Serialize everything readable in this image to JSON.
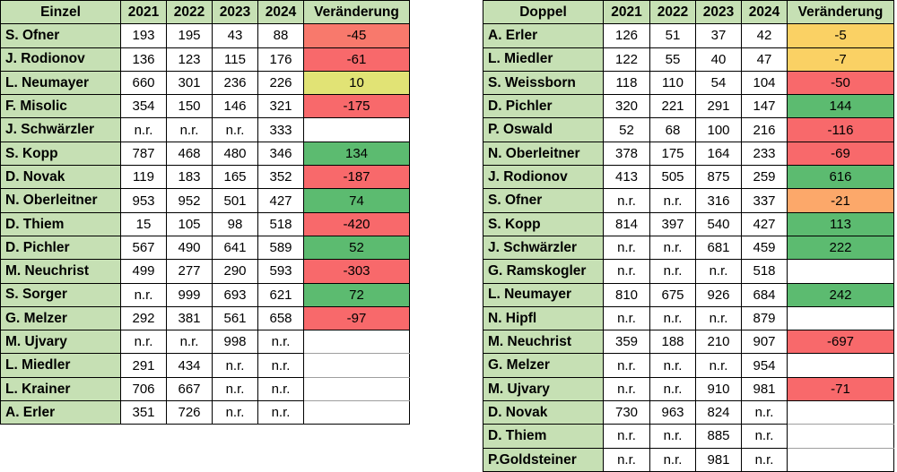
{
  "colors": {
    "header_green": "#C6E0B4",
    "red": "#F8696B",
    "light_red": "#F8796C",
    "green": "#5CBB70",
    "yellow_green": "#E1E375",
    "amber": "#FAD164",
    "orange": "#FCA86A",
    "border_dark": "#000000",
    "border_light": "#9E9E9E"
  },
  "tables": [
    {
      "title": "Einzel",
      "years": [
        "2021",
        "2022",
        "2023",
        "2024"
      ],
      "change_label": "Veränderung",
      "rows": [
        {
          "name": "S. Ofner",
          "values": [
            "193",
            "195",
            "43",
            "88"
          ],
          "change": "-45",
          "change_color": "light_red"
        },
        {
          "name": "J. Rodionov",
          "values": [
            "136",
            "123",
            "115",
            "176"
          ],
          "change": "-61",
          "change_color": "red"
        },
        {
          "name": "L. Neumayer",
          "values": [
            "660",
            "301",
            "236",
            "226"
          ],
          "change": "10",
          "change_color": "yellow_green"
        },
        {
          "name": "F. Misolic",
          "values": [
            "354",
            "150",
            "146",
            "321"
          ],
          "change": "-175",
          "change_color": "red"
        },
        {
          "name": "J. Schwärzler",
          "values": [
            "n.r.",
            "n.r.",
            "n.r.",
            "333"
          ],
          "change": "",
          "change_color": ""
        },
        {
          "name": "S. Kopp",
          "values": [
            "787",
            "468",
            "480",
            "346"
          ],
          "change": "134",
          "change_color": "green"
        },
        {
          "name": "D. Novak",
          "values": [
            "119",
            "183",
            "165",
            "352"
          ],
          "change": "-187",
          "change_color": "red"
        },
        {
          "name": "N. Oberleitner",
          "values": [
            "953",
            "952",
            "501",
            "427"
          ],
          "change": "74",
          "change_color": "green"
        },
        {
          "name": "D. Thiem",
          "values": [
            "15",
            "105",
            "98",
            "518"
          ],
          "change": "-420",
          "change_color": "red"
        },
        {
          "name": "D. Pichler",
          "values": [
            "567",
            "490",
            "641",
            "589"
          ],
          "change": "52",
          "change_color": "green"
        },
        {
          "name": "M. Neuchrist",
          "values": [
            "499",
            "277",
            "290",
            "593"
          ],
          "change": "-303",
          "change_color": "red"
        },
        {
          "name": "S. Sorger",
          "values": [
            "n.r.",
            "999",
            "693",
            "621"
          ],
          "change": "72",
          "change_color": "green"
        },
        {
          "name": "G. Melzer",
          "values": [
            "292",
            "381",
            "561",
            "658"
          ],
          "change": "-97",
          "change_color": "red"
        },
        {
          "name": "M. Ujvary",
          "values": [
            "n.r.",
            "n.r.",
            "998",
            "n.r."
          ],
          "change": "",
          "change_color": ""
        },
        {
          "name": "L. Miedler",
          "values": [
            "291",
            "434",
            "n.r.",
            "n.r."
          ],
          "change": "",
          "change_color": ""
        },
        {
          "name": "L. Krainer",
          "values": [
            "706",
            "667",
            "n.r.",
            "n.r."
          ],
          "change": "",
          "change_color": ""
        },
        {
          "name": "A. Erler",
          "values": [
            "351",
            "726",
            "n.r.",
            "n.r."
          ],
          "change": "",
          "change_color": ""
        }
      ]
    },
    {
      "title": "Doppel",
      "years": [
        "2021",
        "2022",
        "2023",
        "2024"
      ],
      "change_label": "Veränderung",
      "rows": [
        {
          "name": "A. Erler",
          "values": [
            "126",
            "51",
            "37",
            "42"
          ],
          "change": "-5",
          "change_color": "amber"
        },
        {
          "name": "L. Miedler",
          "values": [
            "122",
            "55",
            "40",
            "47"
          ],
          "change": "-7",
          "change_color": "amber"
        },
        {
          "name": "S. Weissborn",
          "values": [
            "118",
            "110",
            "54",
            "104"
          ],
          "change": "-50",
          "change_color": "red"
        },
        {
          "name": "D. Pichler",
          "values": [
            "320",
            "221",
            "291",
            "147"
          ],
          "change": "144",
          "change_color": "green"
        },
        {
          "name": "P. Oswald",
          "values": [
            "52",
            "68",
            "100",
            "216"
          ],
          "change": "-116",
          "change_color": "red"
        },
        {
          "name": "N. Oberleitner",
          "values": [
            "378",
            "175",
            "164",
            "233"
          ],
          "change": "-69",
          "change_color": "red"
        },
        {
          "name": "J. Rodionov",
          "values": [
            "413",
            "505",
            "875",
            "259"
          ],
          "change": "616",
          "change_color": "green"
        },
        {
          "name": "S. Ofner",
          "values": [
            "n.r.",
            "n.r.",
            "316",
            "337"
          ],
          "change": "-21",
          "change_color": "orange"
        },
        {
          "name": "S. Kopp",
          "values": [
            "814",
            "397",
            "540",
            "427"
          ],
          "change": "113",
          "change_color": "green"
        },
        {
          "name": "J. Schwärzler",
          "values": [
            "n.r.",
            "n.r.",
            "681",
            "459"
          ],
          "change": "222",
          "change_color": "green"
        },
        {
          "name": "G. Ramskogler",
          "values": [
            "n.r.",
            "n.r.",
            "n.r.",
            "518"
          ],
          "change": "",
          "change_color": ""
        },
        {
          "name": "L. Neumayer",
          "values": [
            "810",
            "675",
            "926",
            "684"
          ],
          "change": "242",
          "change_color": "green"
        },
        {
          "name": "N. Hipfl",
          "values": [
            "n.r.",
            "n.r.",
            "n.r.",
            "879"
          ],
          "change": "",
          "change_color": ""
        },
        {
          "name": "M. Neuchrist",
          "values": [
            "359",
            "188",
            "210",
            "907"
          ],
          "change": "-697",
          "change_color": "red"
        },
        {
          "name": "G. Melzer",
          "values": [
            "n.r.",
            "n.r.",
            "n.r.",
            "954"
          ],
          "change": "",
          "change_color": ""
        },
        {
          "name": "M. Ujvary",
          "values": [
            "n.r.",
            "n.r.",
            "910",
            "981"
          ],
          "change": "-71",
          "change_color": "red"
        },
        {
          "name": "D. Novak",
          "values": [
            "730",
            "963",
            "824",
            "n.r."
          ],
          "change": "",
          "change_color": ""
        },
        {
          "name": "D. Thiem",
          "values": [
            "n.r.",
            "n.r.",
            "885",
            "n.r."
          ],
          "change": "",
          "change_color": ""
        },
        {
          "name": "P.Goldsteiner",
          "values": [
            "n.r.",
            "n.r.",
            "981",
            "n.r."
          ],
          "change": "",
          "change_color": ""
        }
      ]
    }
  ]
}
